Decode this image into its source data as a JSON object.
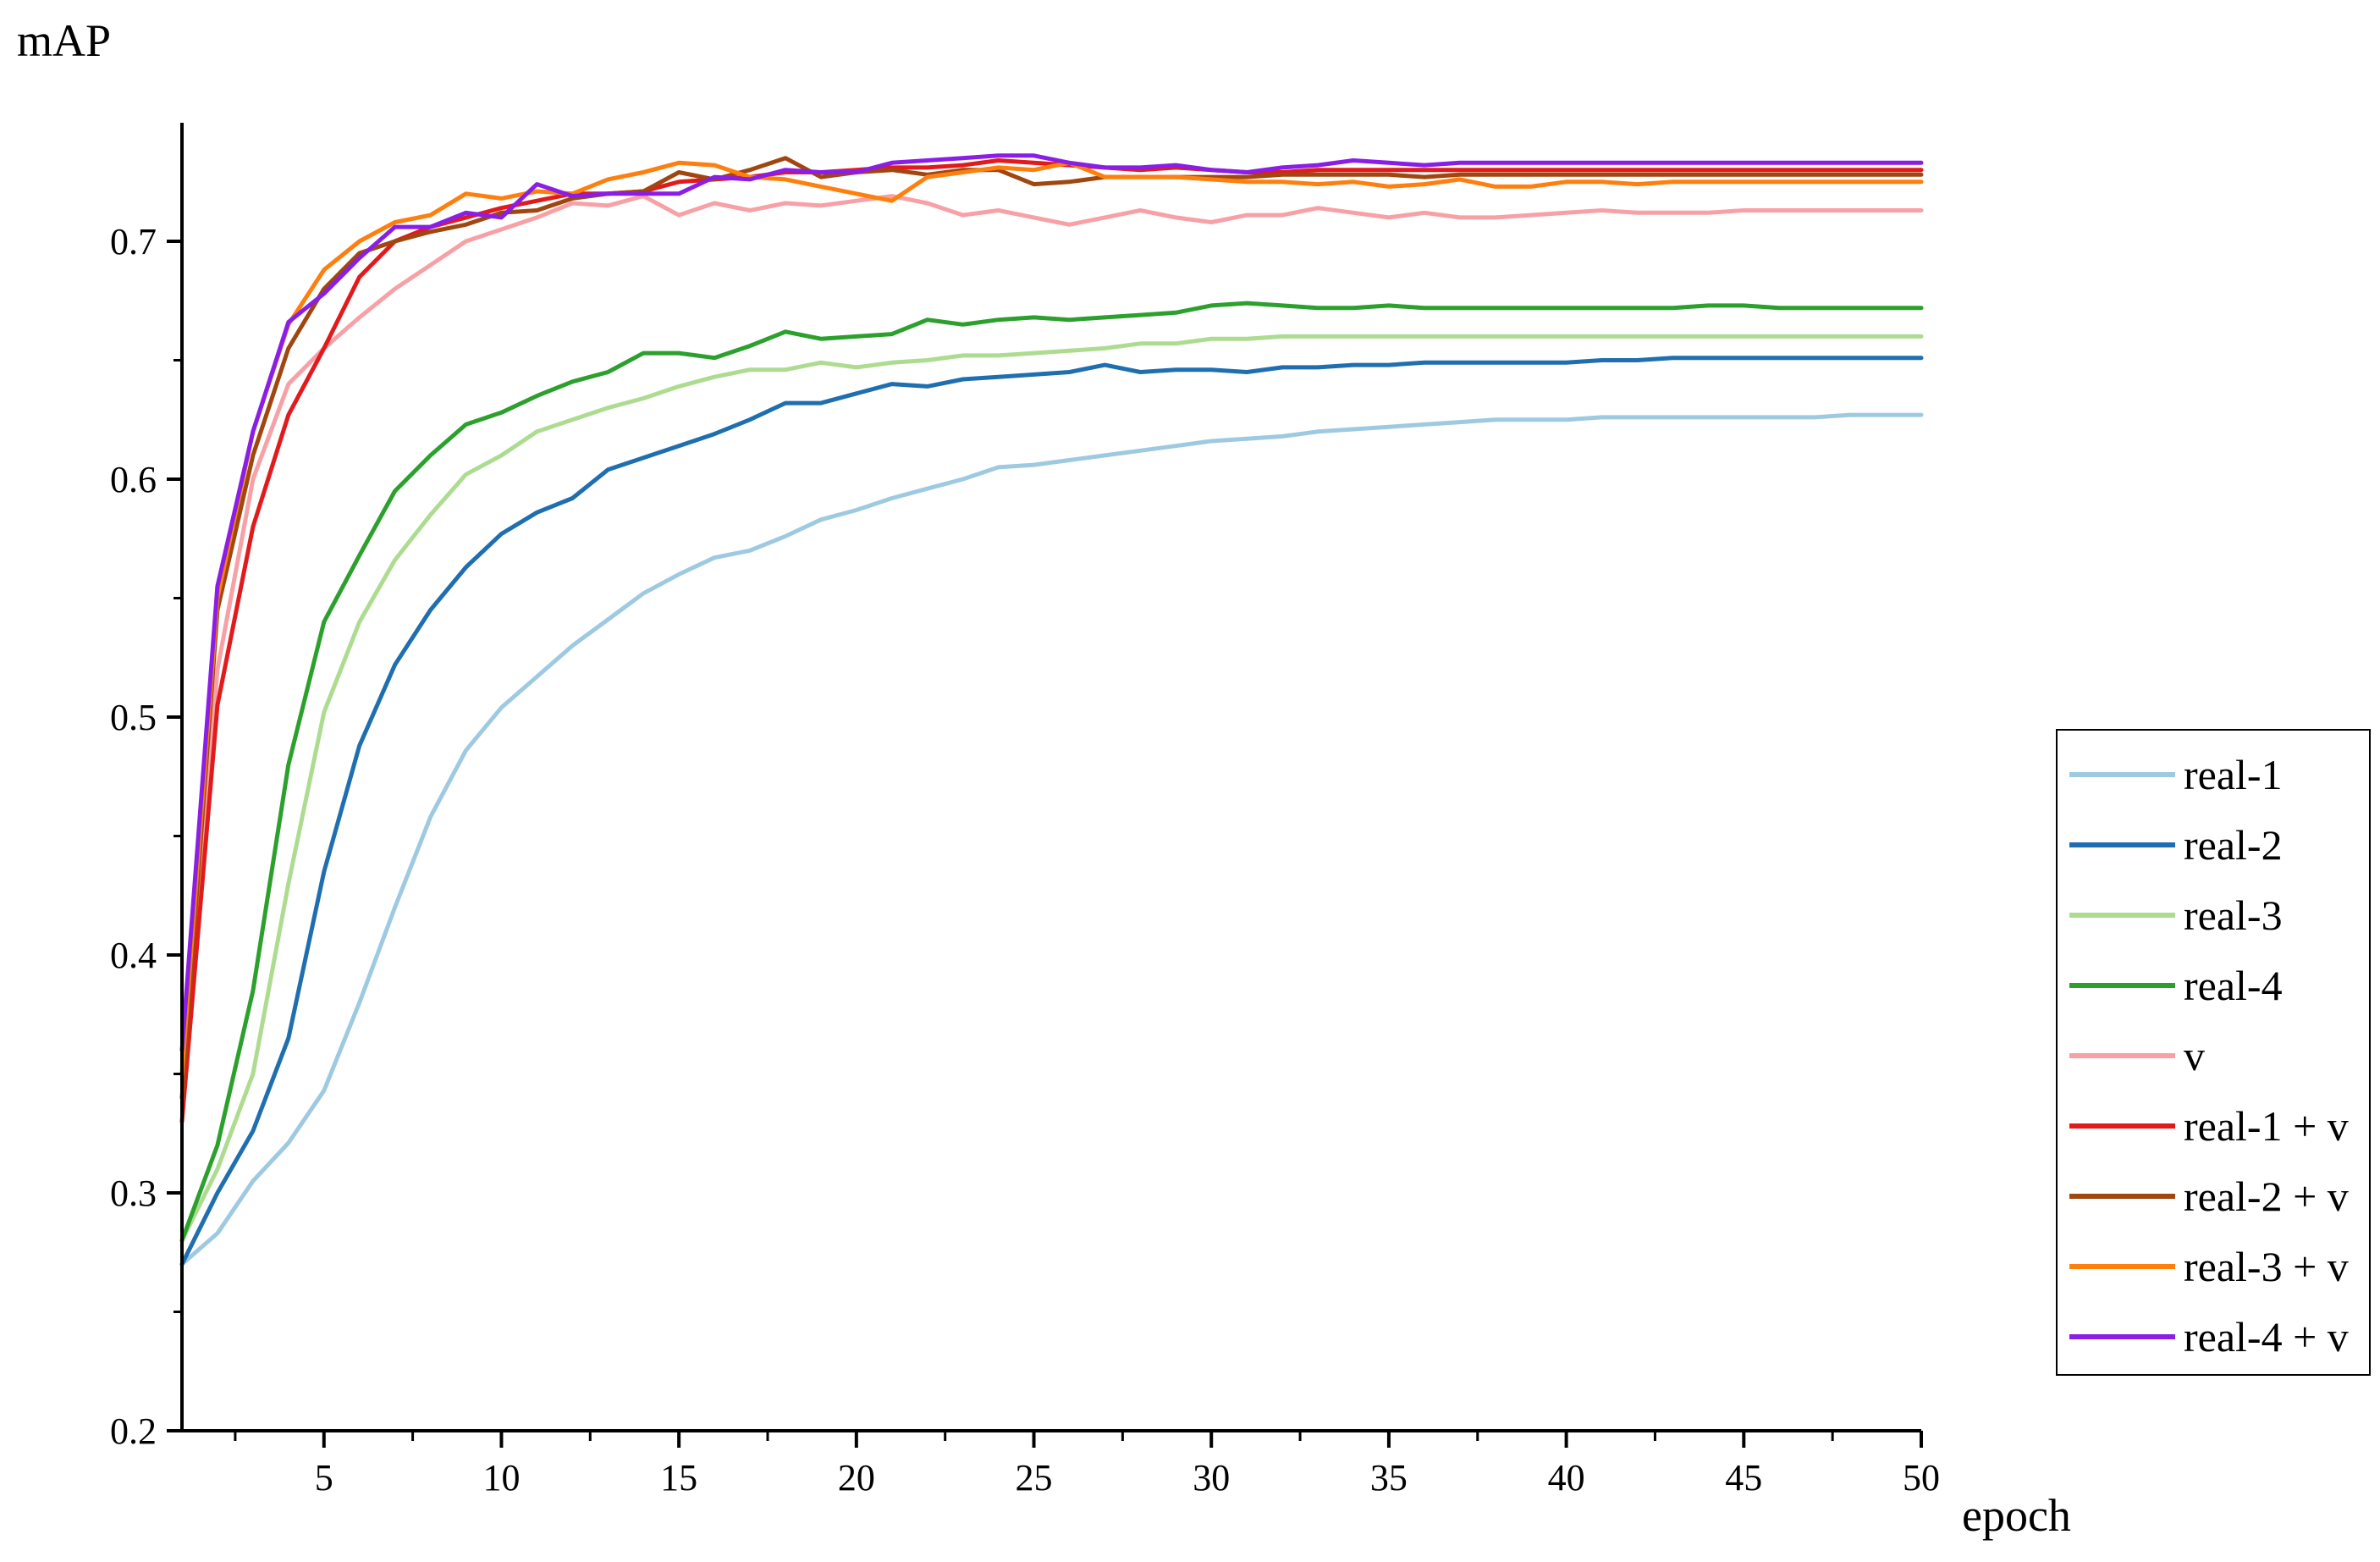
{
  "chart_data": {
    "type": "line",
    "title": "",
    "xlabel": "epoch",
    "ylabel": "mAP",
    "xlim": [
      1,
      50
    ],
    "ylim": [
      0.2,
      0.75
    ],
    "x_ticks": [
      5,
      10,
      15,
      20,
      25,
      30,
      35,
      40,
      45,
      50
    ],
    "y_ticks": [
      0.2,
      0.3,
      0.4,
      0.5,
      0.6,
      0.7
    ],
    "x_tick_labels": [
      "5",
      "10",
      "15",
      "20",
      "25",
      "30",
      "35",
      "40",
      "45",
      "50"
    ],
    "y_tick_labels": [
      "0.2",
      "0.3",
      "0.4",
      "0.5",
      "0.6",
      "0.7"
    ],
    "grid": false,
    "legend_position": "lower-right",
    "x": [
      1,
      2,
      3,
      4,
      5,
      6,
      7,
      8,
      9,
      10,
      11,
      12,
      13,
      14,
      15,
      16,
      17,
      18,
      19,
      20,
      21,
      22,
      23,
      24,
      25,
      26,
      27,
      28,
      29,
      30,
      31,
      32,
      33,
      34,
      35,
      36,
      37,
      38,
      39,
      40,
      41,
      42,
      43,
      44,
      45,
      46,
      47,
      48,
      49,
      50
    ],
    "series": [
      {
        "name": "real-1",
        "color": "#9ecae1",
        "values": [
          0.27,
          0.283,
          0.305,
          0.321,
          0.343,
          0.38,
          0.42,
          0.458,
          0.486,
          0.504,
          0.517,
          0.53,
          0.541,
          0.552,
          0.56,
          0.567,
          0.57,
          0.576,
          0.583,
          0.587,
          0.592,
          0.596,
          0.6,
          0.605,
          0.606,
          0.608,
          0.61,
          0.612,
          0.614,
          0.616,
          0.617,
          0.618,
          0.62,
          0.621,
          0.622,
          0.623,
          0.624,
          0.625,
          0.625,
          0.625,
          0.626,
          0.626,
          0.626,
          0.626,
          0.626,
          0.626,
          0.626,
          0.627,
          0.627,
          0.627
        ]
      },
      {
        "name": "real-2",
        "color": "#1f6fb0",
        "values": [
          0.27,
          0.3,
          0.326,
          0.365,
          0.435,
          0.488,
          0.522,
          0.545,
          0.563,
          0.577,
          0.586,
          0.592,
          0.604,
          0.609,
          0.614,
          0.619,
          0.625,
          0.632,
          0.632,
          0.636,
          0.64,
          0.639,
          0.642,
          0.643,
          0.644,
          0.645,
          0.648,
          0.645,
          0.646,
          0.646,
          0.645,
          0.647,
          0.647,
          0.648,
          0.648,
          0.649,
          0.649,
          0.649,
          0.649,
          0.649,
          0.65,
          0.65,
          0.651,
          0.651,
          0.651,
          0.651,
          0.651,
          0.651,
          0.651,
          0.651
        ]
      },
      {
        "name": "real-3",
        "color": "#addc91",
        "values": [
          0.28,
          0.31,
          0.35,
          0.43,
          0.502,
          0.54,
          0.566,
          0.585,
          0.602,
          0.61,
          0.62,
          0.625,
          0.63,
          0.634,
          0.639,
          0.643,
          0.646,
          0.646,
          0.649,
          0.647,
          0.649,
          0.65,
          0.652,
          0.652,
          0.653,
          0.654,
          0.655,
          0.657,
          0.657,
          0.659,
          0.659,
          0.66,
          0.66,
          0.66,
          0.66,
          0.66,
          0.66,
          0.66,
          0.66,
          0.66,
          0.66,
          0.66,
          0.66,
          0.66,
          0.66,
          0.66,
          0.66,
          0.66,
          0.66,
          0.66
        ]
      },
      {
        "name": "real-4",
        "color": "#2ca02c",
        "values": [
          0.28,
          0.32,
          0.385,
          0.48,
          0.54,
          0.568,
          0.595,
          0.61,
          0.623,
          0.628,
          0.635,
          0.641,
          0.645,
          0.653,
          0.653,
          0.651,
          0.656,
          0.662,
          0.659,
          0.66,
          0.661,
          0.667,
          0.665,
          0.667,
          0.668,
          0.667,
          0.668,
          0.669,
          0.67,
          0.673,
          0.674,
          0.673,
          0.672,
          0.672,
          0.673,
          0.672,
          0.672,
          0.672,
          0.672,
          0.672,
          0.672,
          0.672,
          0.672,
          0.673,
          0.673,
          0.672,
          0.672,
          0.672,
          0.672,
          0.672
        ]
      },
      {
        "name": "v",
        "color": "#f7a1a6",
        "values": [
          0.34,
          0.52,
          0.6,
          0.64,
          0.655,
          0.668,
          0.68,
          0.69,
          0.7,
          0.705,
          0.71,
          0.716,
          0.715,
          0.719,
          0.711,
          0.716,
          0.713,
          0.716,
          0.715,
          0.717,
          0.719,
          0.716,
          0.711,
          0.713,
          0.71,
          0.707,
          0.71,
          0.713,
          0.71,
          0.708,
          0.711,
          0.711,
          0.714,
          0.712,
          0.71,
          0.712,
          0.71,
          0.71,
          0.711,
          0.712,
          0.713,
          0.712,
          0.712,
          0.712,
          0.713,
          0.713,
          0.713,
          0.713,
          0.713,
          0.713
        ]
      },
      {
        "name": "real-1 + v",
        "color": "#e31a1c",
        "values": [
          0.33,
          0.505,
          0.58,
          0.627,
          0.655,
          0.685,
          0.7,
          0.706,
          0.71,
          0.714,
          0.717,
          0.72,
          0.72,
          0.721,
          0.725,
          0.726,
          0.727,
          0.729,
          0.729,
          0.73,
          0.731,
          0.731,
          0.732,
          0.734,
          0.733,
          0.732,
          0.731,
          0.73,
          0.731,
          0.73,
          0.729,
          0.729,
          0.73,
          0.73,
          0.73,
          0.73,
          0.73,
          0.73,
          0.73,
          0.73,
          0.73,
          0.73,
          0.73,
          0.73,
          0.73,
          0.73,
          0.73,
          0.73,
          0.73,
          0.73
        ]
      },
      {
        "name": "real-2 + v",
        "color": "#a0460f",
        "values": [
          0.34,
          0.545,
          0.61,
          0.655,
          0.68,
          0.695,
          0.7,
          0.704,
          0.707,
          0.712,
          0.713,
          0.718,
          0.72,
          0.721,
          0.729,
          0.726,
          0.73,
          0.735,
          0.727,
          0.729,
          0.73,
          0.728,
          0.73,
          0.73,
          0.724,
          0.725,
          0.727,
          0.727,
          0.727,
          0.727,
          0.727,
          0.728,
          0.728,
          0.728,
          0.728,
          0.727,
          0.728,
          0.728,
          0.728,
          0.728,
          0.728,
          0.728,
          0.728,
          0.728,
          0.728,
          0.728,
          0.728,
          0.728,
          0.728,
          0.728
        ]
      },
      {
        "name": "real-3 + v",
        "color": "#ff7f0e",
        "values": [
          0.35,
          0.55,
          0.62,
          0.665,
          0.688,
          0.7,
          0.708,
          0.711,
          0.72,
          0.718,
          0.721,
          0.72,
          0.726,
          0.729,
          0.733,
          0.732,
          0.727,
          0.726,
          0.723,
          0.72,
          0.717,
          0.727,
          0.729,
          0.731,
          0.73,
          0.733,
          0.727,
          0.727,
          0.727,
          0.726,
          0.725,
          0.725,
          0.724,
          0.725,
          0.723,
          0.724,
          0.726,
          0.723,
          0.723,
          0.725,
          0.725,
          0.724,
          0.725,
          0.725,
          0.725,
          0.725,
          0.725,
          0.725,
          0.725,
          0.725
        ]
      },
      {
        "name": "real-4 + v",
        "color": "#8a1ee6",
        "values": [
          0.36,
          0.555,
          0.62,
          0.666,
          0.678,
          0.693,
          0.706,
          0.706,
          0.712,
          0.71,
          0.724,
          0.719,
          0.72,
          0.72,
          0.72,
          0.727,
          0.726,
          0.73,
          0.729,
          0.729,
          0.733,
          0.734,
          0.735,
          0.736,
          0.736,
          0.733,
          0.731,
          0.731,
          0.732,
          0.73,
          0.729,
          0.731,
          0.732,
          0.734,
          0.733,
          0.732,
          0.733,
          0.733,
          0.733,
          0.733,
          0.733,
          0.733,
          0.733,
          0.733,
          0.733,
          0.733,
          0.733,
          0.733,
          0.733,
          0.733
        ]
      }
    ]
  }
}
